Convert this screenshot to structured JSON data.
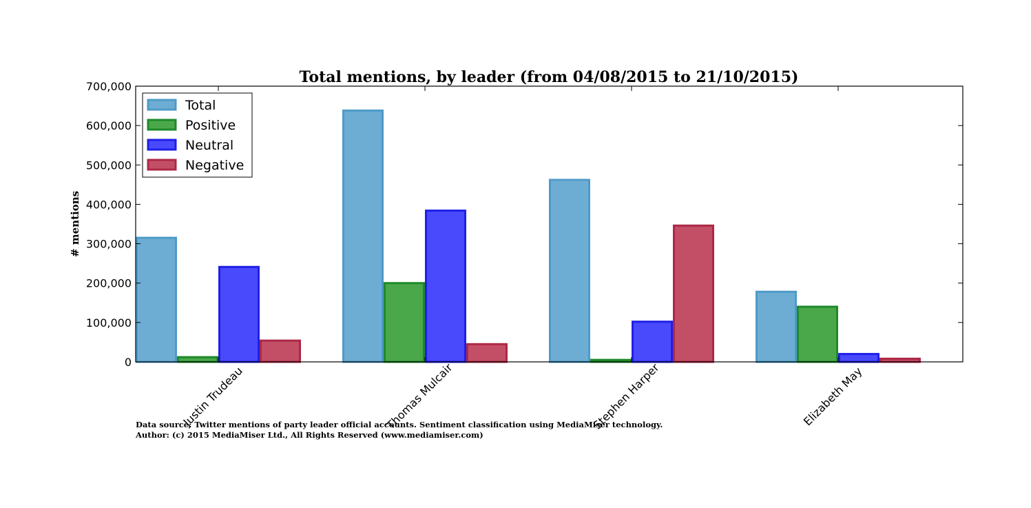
{
  "chart_data": {
    "type": "bar",
    "title": "Total mentions, by leader (from 04/08/2015 to 21/10/2015)",
    "xlabel": "",
    "ylabel": "# mentions",
    "ylim": [
      0,
      700000
    ],
    "yticks": [
      0,
      100000,
      200000,
      300000,
      400000,
      500000,
      600000,
      700000
    ],
    "ytick_labels": [
      "0",
      "100,000",
      "200,000",
      "300,000",
      "400,000",
      "500,000",
      "600,000",
      "700,000"
    ],
    "categories": [
      "Justin Trudeau",
      "Thomas Mulcair",
      "Stephen Harper",
      "Elizabeth May"
    ],
    "series": [
      {
        "name": "Total",
        "fill": "#6eadd3",
        "stroke": "#4d9ac8",
        "values": [
          315000,
          638000,
          462000,
          178000
        ]
      },
      {
        "name": "Positive",
        "fill": "#4aa74a",
        "stroke": "#1e8a28",
        "values": [
          12000,
          200000,
          5000,
          140000
        ]
      },
      {
        "name": "Neutral",
        "fill": "#4a4afd",
        "stroke": "#1f1fe8",
        "values": [
          241000,
          384000,
          102000,
          20000
        ]
      },
      {
        "name": "Negative",
        "fill": "#c24f66",
        "stroke": "#ad2846",
        "values": [
          54000,
          45000,
          346000,
          8000
        ]
      }
    ],
    "legend_position": "top-left",
    "grid": false
  },
  "footnotes": [
    "Data source: Twitter mentions of party leader official accounts. Sentiment classification using MediaMiser technology.",
    "Author: (c) 2015 MediaMiser Ltd., All Rights Reserved (www.mediamiser.com)"
  ]
}
